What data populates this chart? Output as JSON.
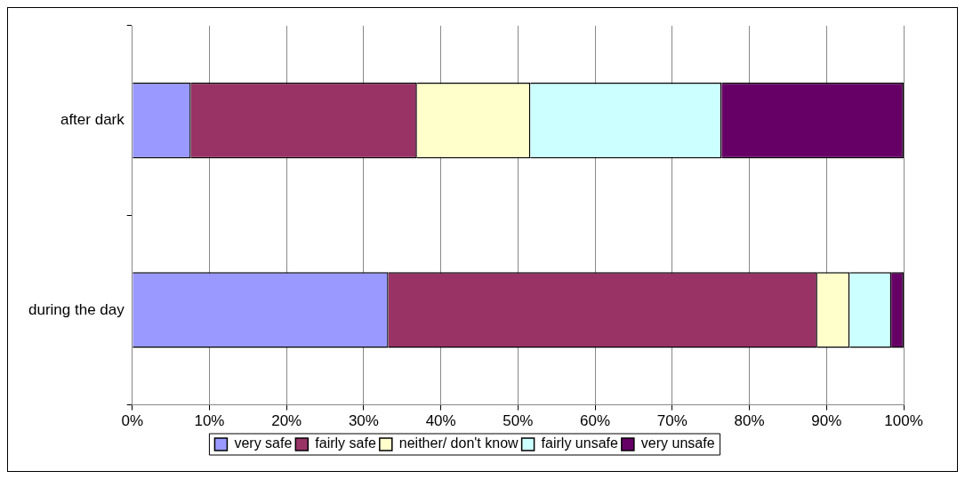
{
  "chart_data": {
    "type": "bar",
    "orientation": "horizontal",
    "stacked": true,
    "categories": [
      "after dark",
      "during the day"
    ],
    "series": [
      {
        "name": "very safe",
        "color": "#9999ff",
        "values": [
          7.6,
          33.2
        ]
      },
      {
        "name": "fairly safe",
        "color": "#993366",
        "values": [
          29.3,
          55.6
        ]
      },
      {
        "name": "neither/ don't know",
        "color": "#ffffcc",
        "values": [
          14.7,
          4.2
        ]
      },
      {
        "name": "fairly unsafe",
        "color": "#ccffff",
        "values": [
          24.8,
          5.4
        ]
      },
      {
        "name": "very unsafe",
        "color": "#660066",
        "values": [
          23.6,
          1.6
        ]
      }
    ],
    "xlim": [
      0,
      100
    ],
    "xticks": [
      {
        "value": 0,
        "label": "0%"
      },
      {
        "value": 10,
        "label": "10%"
      },
      {
        "value": 20,
        "label": "20%"
      },
      {
        "value": 30,
        "label": "30%"
      },
      {
        "value": 40,
        "label": "40%"
      },
      {
        "value": 50,
        "label": "50%"
      },
      {
        "value": 60,
        "label": "60%"
      },
      {
        "value": 70,
        "label": "70%"
      },
      {
        "value": 80,
        "label": "80%"
      },
      {
        "value": 90,
        "label": "90%"
      },
      {
        "value": 100,
        "label": "100%"
      }
    ],
    "grid": "x",
    "legend": "bottom"
  }
}
